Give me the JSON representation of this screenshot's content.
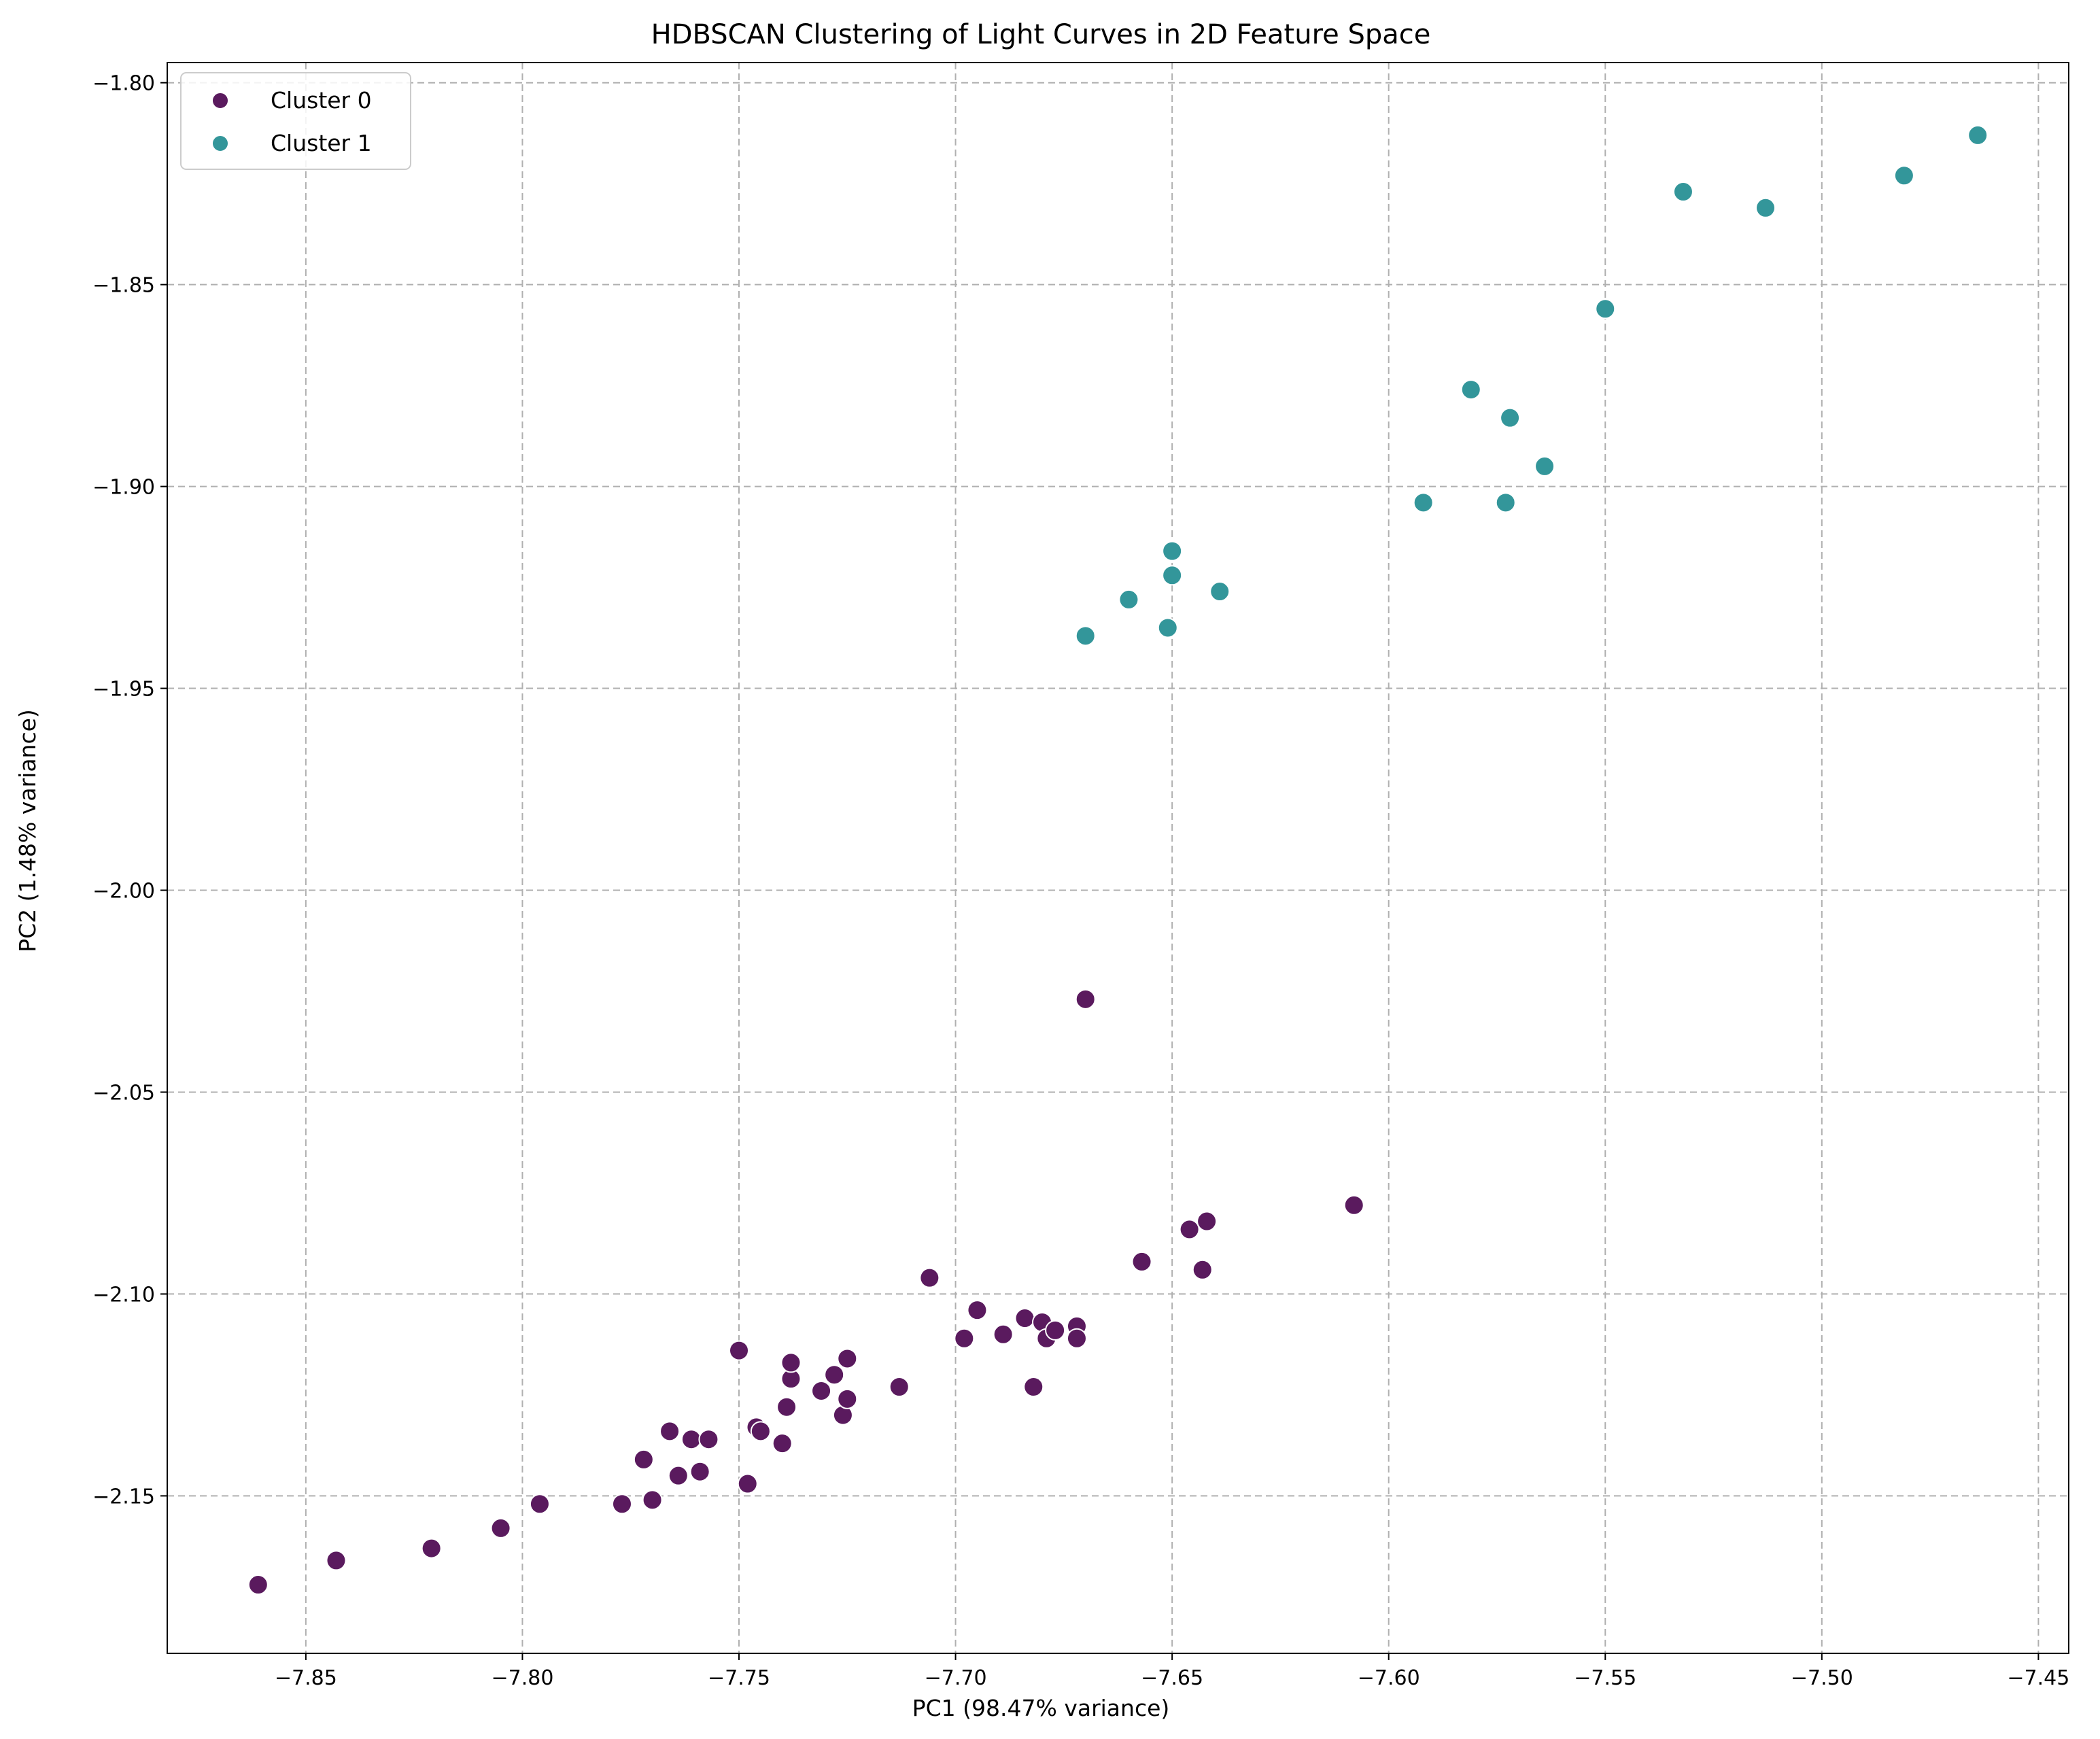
{
  "chart_data": {
    "type": "scatter",
    "title": "HDBSCAN Clustering of Light Curves in 2D Feature Space",
    "xlabel": "PC1 (98.47% variance)",
    "ylabel": "PC2 (1.48% variance)",
    "xlim": [
      -7.882,
      -7.443
    ],
    "ylim": [
      -2.189,
      -1.795
    ],
    "xticks": [
      -7.85,
      -7.8,
      -7.75,
      -7.7,
      -7.65,
      -7.6,
      -7.55,
      -7.5,
      -7.45
    ],
    "xtick_labels": [
      "−7.85",
      "−7.80",
      "−7.75",
      "−7.70",
      "−7.65",
      "−7.60",
      "−7.55",
      "−7.50",
      "−7.45"
    ],
    "yticks": [
      -1.8,
      -1.85,
      -1.9,
      -1.95,
      -2.0,
      -2.05,
      -2.1,
      -2.15
    ],
    "ytick_labels": [
      "−1.80",
      "−1.85",
      "−1.90",
      "−1.95",
      "−2.00",
      "−2.05",
      "−2.10",
      "−2.15"
    ],
    "grid": true,
    "legend_position": "top-left",
    "series": [
      {
        "name": "Cluster 0",
        "color": "#5a1a5e",
        "points": [
          [
            -7.861,
            -2.172
          ],
          [
            -7.843,
            -2.166
          ],
          [
            -7.821,
            -2.163
          ],
          [
            -7.805,
            -2.158
          ],
          [
            -7.796,
            -2.152
          ],
          [
            -7.777,
            -2.152
          ],
          [
            -7.77,
            -2.151
          ],
          [
            -7.772,
            -2.141
          ],
          [
            -7.764,
            -2.145
          ],
          [
            -7.759,
            -2.144
          ],
          [
            -7.766,
            -2.134
          ],
          [
            -7.761,
            -2.136
          ],
          [
            -7.757,
            -2.136
          ],
          [
            -7.748,
            -2.147
          ],
          [
            -7.746,
            -2.133
          ],
          [
            -7.745,
            -2.134
          ],
          [
            -7.74,
            -2.137
          ],
          [
            -7.739,
            -2.128
          ],
          [
            -7.738,
            -2.121
          ],
          [
            -7.738,
            -2.117
          ],
          [
            -7.75,
            -2.114
          ],
          [
            -7.731,
            -2.124
          ],
          [
            -7.728,
            -2.12
          ],
          [
            -7.726,
            -2.13
          ],
          [
            -7.725,
            -2.126
          ],
          [
            -7.725,
            -2.116
          ],
          [
            -7.713,
            -2.123
          ],
          [
            -7.706,
            -2.096
          ],
          [
            -7.698,
            -2.111
          ],
          [
            -7.695,
            -2.104
          ],
          [
            -7.689,
            -2.11
          ],
          [
            -7.684,
            -2.106
          ],
          [
            -7.68,
            -2.107
          ],
          [
            -7.679,
            -2.111
          ],
          [
            -7.677,
            -2.109
          ],
          [
            -7.682,
            -2.123
          ],
          [
            -7.672,
            -2.108
          ],
          [
            -7.672,
            -2.111
          ],
          [
            -7.67,
            -2.027
          ],
          [
            -7.657,
            -2.092
          ],
          [
            -7.646,
            -2.084
          ],
          [
            -7.642,
            -2.082
          ],
          [
            -7.643,
            -2.094
          ],
          [
            -7.608,
            -2.078
          ]
        ]
      },
      {
        "name": "Cluster 1",
        "color": "#33969a",
        "points": [
          [
            -7.67,
            -1.937
          ],
          [
            -7.66,
            -1.928
          ],
          [
            -7.651,
            -1.935
          ],
          [
            -7.65,
            -1.916
          ],
          [
            -7.65,
            -1.922
          ],
          [
            -7.639,
            -1.926
          ],
          [
            -7.592,
            -1.904
          ],
          [
            -7.581,
            -1.876
          ],
          [
            -7.573,
            -1.904
          ],
          [
            -7.572,
            -1.883
          ],
          [
            -7.564,
            -1.895
          ],
          [
            -7.55,
            -1.856
          ],
          [
            -7.532,
            -1.827
          ],
          [
            -7.513,
            -1.831
          ],
          [
            -7.481,
            -1.823
          ],
          [
            -7.464,
            -1.813
          ]
        ]
      }
    ]
  }
}
